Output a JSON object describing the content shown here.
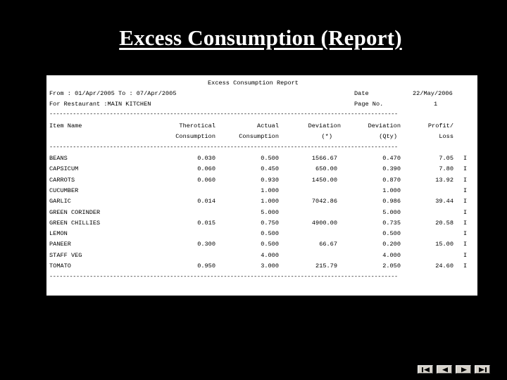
{
  "slide": {
    "title": "Excess Consumption (Report)"
  },
  "report": {
    "title": "Excess Consumption Report",
    "from_line": "From : 01/Apr/2005 To : 07/Apr/2005",
    "restaurant_line": "For Restaurant :MAIN KITCHEN",
    "date_label": "Date",
    "date_value": "22/May/2006",
    "page_label": "Page No.",
    "page_value": "1",
    "separator": "--------------------------------------------------------------------------------------------------------",
    "headers": {
      "item_name": "Item Name",
      "theoretical_1": "Therotical",
      "theoretical_2": "Consumption",
      "actual_1": "Actual",
      "actual_2": "Consumption",
      "dev_pct_1": "Deviation",
      "dev_pct_2": "(*)",
      "dev_qty_1": "Deviation",
      "dev_qty_2": "(Qty)",
      "profit_1": "Profit/",
      "profit_2": "Loss"
    },
    "rows": [
      {
        "item": "BEANS",
        "theoretical": "0.030",
        "actual": "0.500",
        "dev_pct": "1566.67",
        "dev_qty": "0.470",
        "profit": "7.05",
        "flag": "I"
      },
      {
        "item": "CAPSICUM",
        "theoretical": "0.060",
        "actual": "0.450",
        "dev_pct": "650.00",
        "dev_qty": "0.390",
        "profit": "7.80",
        "flag": "I"
      },
      {
        "item": "CARROTS",
        "theoretical": "0.060",
        "actual": "0.930",
        "dev_pct": "1450.00",
        "dev_qty": "0.870",
        "profit": "13.92",
        "flag": "I"
      },
      {
        "item": "CUCUMBER",
        "theoretical": "",
        "actual": "1.000",
        "dev_pct": "",
        "dev_qty": "1.000",
        "profit": "",
        "flag": "I"
      },
      {
        "item": "GARLIC",
        "theoretical": "0.014",
        "actual": "1.000",
        "dev_pct": "7042.86",
        "dev_qty": "0.986",
        "profit": "39.44",
        "flag": "I"
      },
      {
        "item": "GREEN CORINDER",
        "theoretical": "",
        "actual": "5.000",
        "dev_pct": "",
        "dev_qty": "5.000",
        "profit": "",
        "flag": "I"
      },
      {
        "item": "GREEN CHILLIES",
        "theoretical": "0.015",
        "actual": "0.750",
        "dev_pct": "4900.00",
        "dev_qty": "0.735",
        "profit": "20.58",
        "flag": "I"
      },
      {
        "item": "LEMON",
        "theoretical": "",
        "actual": "0.500",
        "dev_pct": "",
        "dev_qty": "0.500",
        "profit": "",
        "flag": "I"
      },
      {
        "item": "PANEER",
        "theoretical": "0.300",
        "actual": "0.500",
        "dev_pct": "66.67",
        "dev_qty": "0.200",
        "profit": "15.00",
        "flag": "I"
      },
      {
        "item": "STAFF VEG",
        "theoretical": "",
        "actual": "4.000",
        "dev_pct": "",
        "dev_qty": "4.000",
        "profit": "",
        "flag": "I"
      },
      {
        "item": "TOMATO",
        "theoretical": "0.950",
        "actual": "3.000",
        "dev_pct": "215.79",
        "dev_qty": "2.050",
        "profit": "24.60",
        "flag": "I"
      }
    ]
  },
  "nav": {
    "buttons": [
      {
        "name": "first-slide-button",
        "icon": "first-icon"
      },
      {
        "name": "previous-slide-button",
        "icon": "previous-icon"
      },
      {
        "name": "next-slide-button",
        "icon": "next-icon"
      },
      {
        "name": "last-slide-button",
        "icon": "last-icon"
      }
    ]
  }
}
